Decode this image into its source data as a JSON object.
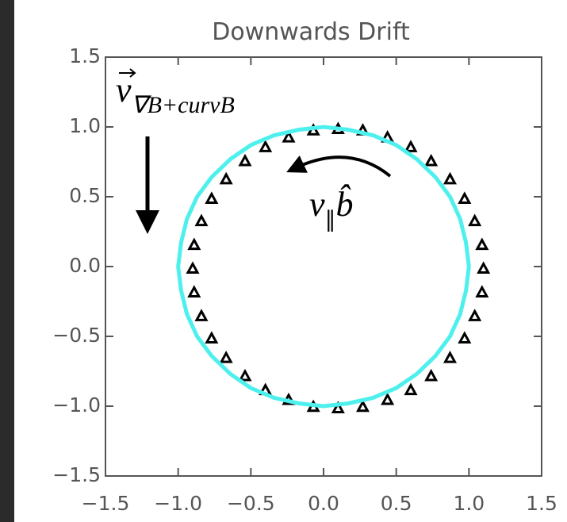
{
  "chart_data": {
    "type": "scatter",
    "title": "Downwards Drift",
    "xlim": [
      -1.5,
      1.5
    ],
    "ylim": [
      -1.5,
      1.5
    ],
    "xticks": [
      {
        "value": -1.5,
        "label": "−1.5"
      },
      {
        "value": -1.0,
        "label": "−1.0"
      },
      {
        "value": -0.5,
        "label": "−0.5"
      },
      {
        "value": 0,
        "label": "0.0"
      },
      0.5,
      {
        "value": 1.0,
        "label": "1.0"
      },
      1.5
    ],
    "yticks": [
      {
        "value": -1.5,
        "label": "−1.5"
      },
      {
        "value": -1.0,
        "label": "−1.0"
      },
      {
        "value": -0.5,
        "label": "−0.5"
      },
      {
        "value": 0,
        "label": "0.0"
      },
      0.5,
      {
        "value": 1.0,
        "label": "1.0"
      },
      1.5
    ],
    "annotations": [
      {
        "text": "v",
        "subscript": "∇B+curvB"
      },
      {
        "text": "v",
        "subscript": "∥",
        "after": "b̂"
      }
    ],
    "series": [
      {
        "style": "markers",
        "color": "#000000",
        "x": [
          1.1,
          1.09,
          1.04,
          0.97,
          0.87,
          0.74,
          0.6,
          0.44,
          0.27,
          0.1,
          -0.07,
          -0.24,
          -0.4,
          -0.54,
          -0.67,
          -0.77,
          -0.84,
          -0.89,
          -0.9,
          -0.89,
          -0.84,
          -0.77,
          -0.67,
          -0.54,
          -0.4,
          -0.24,
          -0.07,
          0.1,
          0.27,
          0.44,
          0.6,
          0.74,
          0.87,
          0.97,
          1.04,
          1.09
        ],
        "values": [
          -0.02,
          0.15,
          0.32,
          0.48,
          0.62,
          0.75,
          0.85,
          0.92,
          0.97,
          0.98,
          0.97,
          0.92,
          0.85,
          0.75,
          0.62,
          0.48,
          0.32,
          0.15,
          -0.02,
          -0.19,
          -0.36,
          -0.52,
          -0.66,
          -0.79,
          -0.89,
          -0.96,
          -1.01,
          -1.02,
          -1.01,
          -0.96,
          -0.89,
          -0.79,
          -0.66,
          -0.52,
          -0.36,
          -0.19
        ]
      },
      {
        "style": "line",
        "color": "#4ef0ee",
        "x": [
          1,
          0.98,
          0.94,
          0.87,
          0.77,
          0.64,
          0.5,
          0.34,
          0.17,
          0,
          -0.17,
          -0.34,
          -0.5,
          -0.64,
          -0.77,
          -0.87,
          -0.94,
          -0.98,
          -1,
          -0.98,
          -0.94,
          -0.87,
          -0.77,
          -0.64,
          -0.5,
          -0.34,
          -0.17,
          0,
          0.17,
          0.34,
          0.5,
          0.64,
          0.77,
          0.87,
          0.94,
          0.98,
          1
        ],
        "values": [
          0,
          0.17,
          0.34,
          0.5,
          0.64,
          0.77,
          0.87,
          0.94,
          0.98,
          1,
          0.98,
          0.94,
          0.87,
          0.77,
          0.64,
          0.5,
          0.34,
          0.17,
          0,
          -0.17,
          -0.34,
          -0.5,
          -0.64,
          -0.77,
          -0.87,
          -0.94,
          -0.98,
          -1,
          -0.98,
          -0.94,
          -0.87,
          -0.77,
          -0.64,
          -0.5,
          -0.34,
          -0.17,
          0
        ]
      }
    ]
  }
}
